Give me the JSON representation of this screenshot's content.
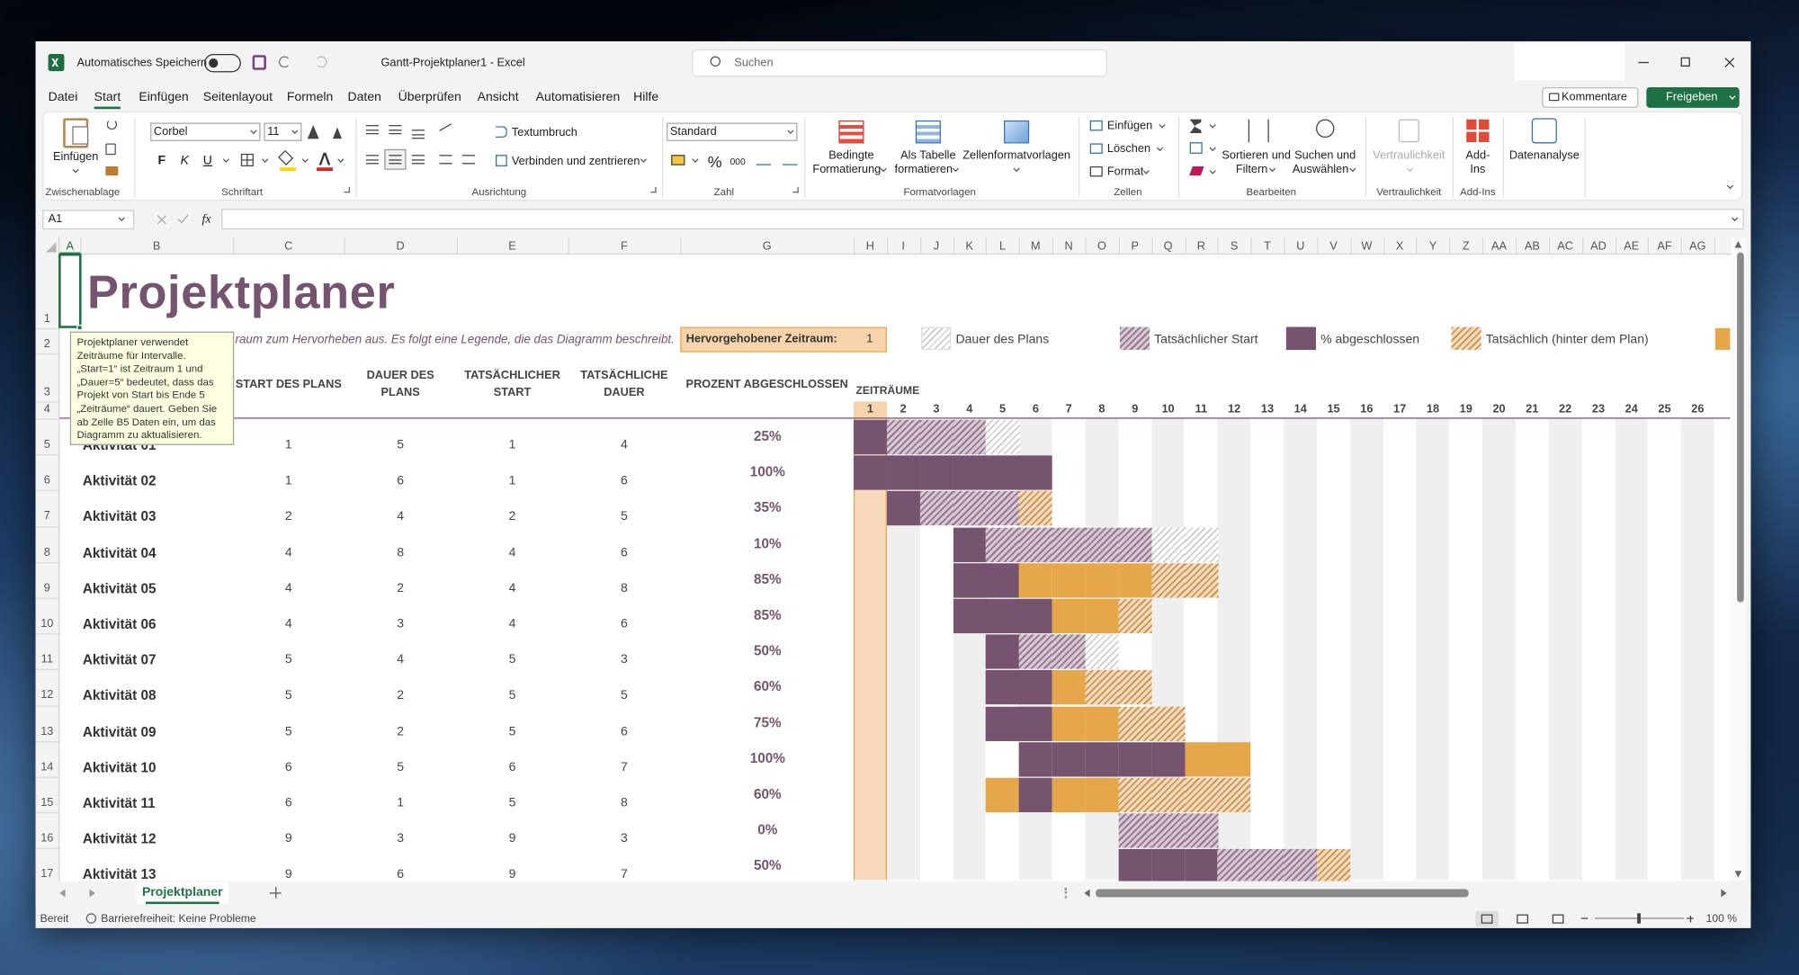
{
  "titlebar": {
    "autosave": "Automatisches Speichern",
    "document": "Gantt-Projektplaner1  -  Excel",
    "search": "Suchen"
  },
  "menu": [
    "Datei",
    "Start",
    "Einfügen",
    "Seitenlayout",
    "Formeln",
    "Daten",
    "Überprüfen",
    "Ansicht",
    "Automatisieren",
    "Hilfe"
  ],
  "actions": {
    "comments": "Kommentare",
    "share": "Freigeben"
  },
  "ribbon": {
    "clipboard": {
      "paste": "Einfügen",
      "label": "Zwischenablage"
    },
    "font": {
      "name": "Corbel",
      "size": 11,
      "bold": "F",
      "italic": "K",
      "underline": "U",
      "label": "Schriftart"
    },
    "alignment": {
      "wrap": "Textumbruch",
      "merge": "Verbinden und zentrieren",
      "label": "Ausrichtung"
    },
    "number": {
      "format": "Standard",
      "percent": "%",
      "thousands": "000",
      "label": "Zahl"
    },
    "styles": {
      "conditional": [
        "Bedingte",
        "Formatierung"
      ],
      "table": [
        "Als Tabelle",
        "formatieren"
      ],
      "cell": "Zellenformatvorlagen",
      "label": "Formatvorlagen"
    },
    "cells": {
      "insert": "Einfügen",
      "delete": "Löschen",
      "format": "Format",
      "label": "Zellen"
    },
    "editing": {
      "sort": [
        "Sortieren und",
        "Filtern"
      ],
      "find": [
        "Suchen und",
        "Auswählen"
      ],
      "label": "Bearbeiten"
    },
    "sensitivity": {
      "button": "Vertraulichkeit",
      "label": "Vertraulichkeit"
    },
    "addins": {
      "button": [
        "Add-",
        "Ins"
      ],
      "label": "Add-Ins"
    },
    "analysis": {
      "button": "Datenanalyse"
    }
  },
  "formula_bar": {
    "name_box": "A1",
    "function": "fx"
  },
  "column_headers": [
    "A",
    "B",
    "C",
    "D",
    "E",
    "F",
    "G",
    "H",
    "I",
    "J",
    "K",
    "L",
    "M",
    "N",
    "O",
    "P",
    "Q",
    "R",
    "S",
    "T",
    "U",
    "V",
    "W",
    "X",
    "Y",
    "Z",
    "AA",
    "AB",
    "AC",
    "AD",
    "AE",
    "AF",
    "AG"
  ],
  "row_headers": [
    1,
    2,
    3,
    4,
    5,
    6,
    7,
    8,
    9,
    10,
    11,
    12,
    13,
    14,
    15,
    16,
    17
  ],
  "sheet": {
    "title": "Projektplaner",
    "subtitle": "raum zum Hervorheben aus.  Es folgt eine Legende, die das Diagramm beschreibt.",
    "highlight_label": "Hervorgehobener Zeitraum:",
    "highlight_period": 1,
    "legend": [
      "Dauer des Plans",
      "Tatsächlicher Start",
      "% abgeschlossen",
      "Tatsächlich (hinter dem Plan)"
    ],
    "headers": [
      "START DES PLANS",
      "DAUER DES PLANS",
      "TATSÄCHLICHER START",
      "TATSÄCHLICHE DAUER",
      "PROZENT ABGESCHLOSSEN"
    ],
    "periods_label": "ZEITRÄUME",
    "periods": [
      1,
      2,
      3,
      4,
      5,
      6,
      7,
      8,
      9,
      10,
      11,
      12,
      13,
      14,
      15,
      16,
      17,
      18,
      19,
      20,
      21,
      22,
      23,
      24,
      25,
      26
    ],
    "rows": [
      {
        "activity": "Aktivität 01",
        "plan_start": 1,
        "plan_duration": 5,
        "actual_start": 1,
        "actual_duration": 4,
        "percent_complete": 25,
        "percent_label": "25%"
      },
      {
        "activity": "Aktivität 02",
        "plan_start": 1,
        "plan_duration": 6,
        "actual_start": 1,
        "actual_duration": 6,
        "percent_complete": 100,
        "percent_label": "100%"
      },
      {
        "activity": "Aktivität 03",
        "plan_start": 2,
        "plan_duration": 4,
        "actual_start": 2,
        "actual_duration": 5,
        "percent_complete": 35,
        "percent_label": "35%"
      },
      {
        "activity": "Aktivität 04",
        "plan_start": 4,
        "plan_duration": 8,
        "actual_start": 4,
        "actual_duration": 6,
        "percent_complete": 10,
        "percent_label": "10%"
      },
      {
        "activity": "Aktivität 05",
        "plan_start": 4,
        "plan_duration": 2,
        "actual_start": 4,
        "actual_duration": 8,
        "percent_complete": 85,
        "percent_label": "85%"
      },
      {
        "activity": "Aktivität 06",
        "plan_start": 4,
        "plan_duration": 3,
        "actual_start": 4,
        "actual_duration": 6,
        "percent_complete": 85,
        "percent_label": "85%"
      },
      {
        "activity": "Aktivität 07",
        "plan_start": 5,
        "plan_duration": 4,
        "actual_start": 5,
        "actual_duration": 3,
        "percent_complete": 50,
        "percent_label": "50%"
      },
      {
        "activity": "Aktivität 08",
        "plan_start": 5,
        "plan_duration": 2,
        "actual_start": 5,
        "actual_duration": 5,
        "percent_complete": 60,
        "percent_label": "60%"
      },
      {
        "activity": "Aktivität 09",
        "plan_start": 5,
        "plan_duration": 2,
        "actual_start": 5,
        "actual_duration": 6,
        "percent_complete": 75,
        "percent_label": "75%"
      },
      {
        "activity": "Aktivität 10",
        "plan_start": 6,
        "plan_duration": 5,
        "actual_start": 6,
        "actual_duration": 7,
        "percent_complete": 100,
        "percent_label": "100%"
      },
      {
        "activity": "Aktivität 11",
        "plan_start": 6,
        "plan_duration": 1,
        "actual_start": 5,
        "actual_duration": 8,
        "percent_complete": 60,
        "percent_label": "60%"
      },
      {
        "activity": "Aktivität 12",
        "plan_start": 9,
        "plan_duration": 3,
        "actual_start": 9,
        "actual_duration": 3,
        "percent_complete": 0,
        "percent_label": "0%"
      },
      {
        "activity": "Aktivität 13",
        "plan_start": 9,
        "plan_duration": 6,
        "actual_start": 9,
        "actual_duration": 7,
        "percent_complete": 50,
        "percent_label": "50%"
      }
    ],
    "tooltip": "Projektplaner verwendet Zeiträume für Intervalle. „Start=1“ ist Zeitraum 1 und „Dauer=5“ bedeutet, dass das Projekt von Start bis Ende 5 „Zeiträume“ dauert. Geben Sie ab Zelle B5 Daten ein, um das Diagramm zu aktualisieren."
  },
  "sheet_tabs": [
    "Projektplaner"
  ],
  "status_bar": {
    "ready": "Bereit",
    "accessibility": "Barrierefreiheit: Keine Probleme",
    "zoom": "100 %"
  }
}
